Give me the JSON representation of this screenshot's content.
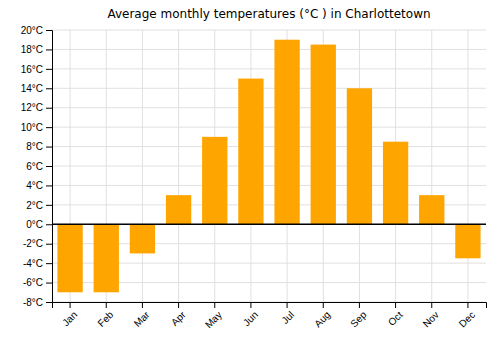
{
  "chart_data": {
    "type": "bar",
    "title": "Average monthly temperatures (°C ) in Charlottetown",
    "categories": [
      "Jan",
      "Feb",
      "Mar",
      "Apr",
      "May",
      "Jun",
      "Jul",
      "Aug",
      "Sep",
      "Oct",
      "Nov",
      "Dec"
    ],
    "values": [
      -7.0,
      -7.0,
      -3.0,
      3.0,
      9.0,
      15.0,
      19.0,
      18.5,
      14.0,
      8.5,
      3.0,
      -3.5
    ],
    "color": "#FFA500",
    "ylim": [
      -8,
      20
    ],
    "yticks": [
      {
        "value": -8,
        "label": "-8°C"
      },
      {
        "value": -6,
        "label": "-6°C"
      },
      {
        "value": -4,
        "label": "-4°C"
      },
      {
        "value": -2,
        "label": "-2°C"
      },
      {
        "value": 0,
        "label": "0°C"
      },
      {
        "value": 2,
        "label": "2°C"
      },
      {
        "value": 4,
        "label": "4°C"
      },
      {
        "value": 6,
        "label": "6°C"
      },
      {
        "value": 8,
        "label": "8°C"
      },
      {
        "value": 10,
        "label": "10°C"
      },
      {
        "value": 12,
        "label": "12°C"
      },
      {
        "value": 14,
        "label": "14°C"
      },
      {
        "value": 16,
        "label": "16°C"
      },
      {
        "value": 18,
        "label": "18°C"
      },
      {
        "value": 20,
        "label": "20°C"
      }
    ],
    "grid": true
  }
}
